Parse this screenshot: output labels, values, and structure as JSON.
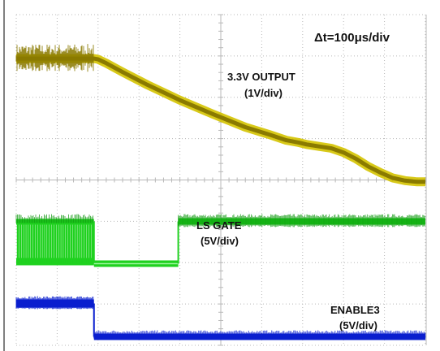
{
  "chart_data": {
    "type": "line",
    "annotations": {
      "timebase": "Δt=100μs/div"
    },
    "x_unit": "µs",
    "x_range": [
      0,
      500
    ],
    "grid": true,
    "colors": {
      "output_trace": "#8a7a00",
      "output_glow": "#d4c300",
      "ls_gate_trace": "#1fd11f",
      "enable_trace": "#0a1fcf",
      "grid": "#b8b8b8",
      "frame": "#000000"
    },
    "series": [
      {
        "name": "3.3V OUTPUT",
        "scale": "(1V/div)",
        "x": [
          0,
          95,
          100,
          110,
          130,
          160,
          200,
          240,
          280,
          310,
          330,
          345,
          355,
          370,
          385,
          400,
          415,
          430,
          445,
          460,
          475,
          490,
          500
        ],
        "y": [
          3.3,
          3.3,
          3.28,
          3.18,
          2.95,
          2.62,
          2.22,
          1.86,
          1.52,
          1.32,
          1.18,
          1.12,
          1.07,
          1.02,
          0.97,
          0.86,
          0.7,
          0.5,
          0.34,
          0.2,
          0.13,
          0.1,
          0.1
        ]
      },
      {
        "name": "LS GATE",
        "scale": "(5V/div)",
        "x": [
          0,
          95,
          96,
          197,
          198,
          500
        ],
        "y": [
          5,
          5,
          0,
          0,
          5,
          5
        ],
        "note_switching": "pulse train before 95 µs"
      },
      {
        "name": "ENABLE3",
        "scale": "(5V/div)",
        "x": [
          0,
          95,
          96,
          500
        ],
        "y": [
          5,
          5,
          0,
          0
        ]
      }
    ]
  }
}
